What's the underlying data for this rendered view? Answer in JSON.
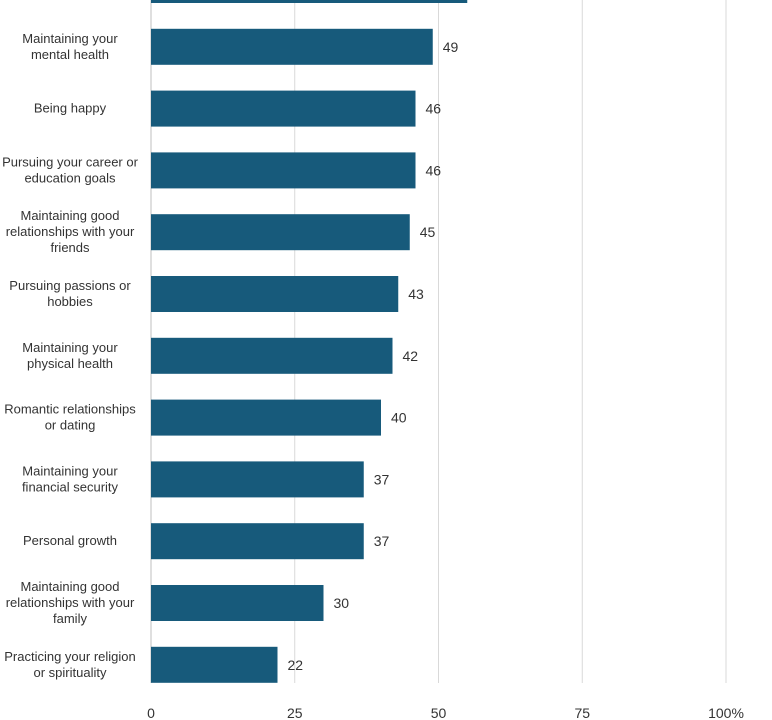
{
  "chart_data": {
    "type": "bar",
    "orientation": "horizontal",
    "color": "#175a7b",
    "categories": [
      "",
      "Maintaining your\nmental health",
      "Being happy",
      "Pursuing your career or\neducation goals",
      "Maintaining good\nrelationships with your\nfriends",
      "Pursuing passions or\nhobbies",
      "Maintaining your\nphysical health",
      "Romantic relationships\nor dating",
      "Maintaining your\nfinancial security",
      "Personal growth",
      "Maintaining good\nrelationships with your\nfamily",
      "Practicing your religion\nor spirituality"
    ],
    "values": [
      55,
      49,
      46,
      46,
      45,
      43,
      42,
      40,
      37,
      37,
      30,
      22
    ],
    "value_labels": [
      "",
      "49",
      "46",
      "46",
      "45",
      "43",
      "42",
      "40",
      "37",
      "37",
      "30",
      "22"
    ],
    "xlim": [
      0,
      100
    ],
    "xticks": [
      0,
      25,
      50,
      75,
      100
    ],
    "xtick_labels": [
      "0",
      "25",
      "50",
      "75",
      "100%"
    ],
    "grid": true
  }
}
